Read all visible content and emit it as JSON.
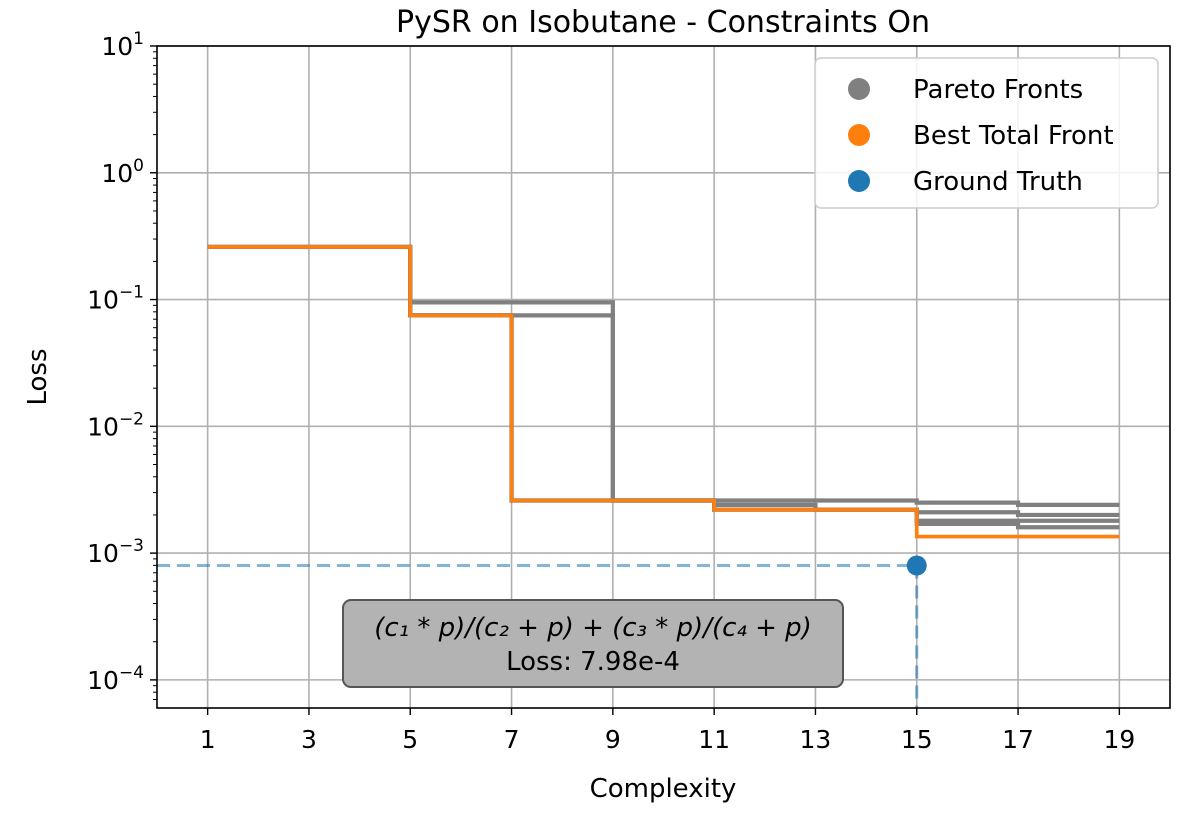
{
  "chart_data": {
    "type": "line",
    "title": "PySR on Isobutane - Constraints On",
    "xlabel": "Complexity",
    "ylabel": "Loss",
    "xlim": [
      0,
      20
    ],
    "ylim": [
      6e-05,
      10
    ],
    "yscale": "log",
    "grid": true,
    "legend_position": "top-right",
    "xticks": [
      1,
      3,
      5,
      7,
      9,
      11,
      13,
      15,
      17,
      19
    ],
    "yticks": [
      {
        "value": 10,
        "base": "10",
        "exp": "1"
      },
      {
        "value": 1,
        "base": "10",
        "exp": "0"
      },
      {
        "value": 0.1,
        "base": "10",
        "exp": "−1"
      },
      {
        "value": 0.01,
        "base": "10",
        "exp": "−2"
      },
      {
        "value": 0.001,
        "base": "10",
        "exp": "−3"
      },
      {
        "value": 0.0001,
        "base": "10",
        "exp": "−4"
      }
    ],
    "legend": [
      {
        "label": "Pareto Fronts",
        "color": "#808080"
      },
      {
        "label": "Best Total Front",
        "color": "#ff7f0e"
      },
      {
        "label": "Ground Truth",
        "color": "#1f77b4"
      }
    ],
    "series": [
      {
        "group": "pareto",
        "color": "#808080",
        "x": [
          1,
          5,
          9,
          11,
          15,
          17,
          19
        ],
        "y": [
          0.26,
          0.095,
          0.0026,
          0.0026,
          0.0025,
          0.0024,
          0.0024
        ]
      },
      {
        "group": "pareto",
        "color": "#808080",
        "x": [
          1,
          5,
          9,
          11,
          13,
          15,
          17,
          19
        ],
        "y": [
          0.26,
          0.075,
          0.0026,
          0.0024,
          0.0022,
          0.0021,
          0.002,
          0.002
        ]
      },
      {
        "group": "pareto",
        "color": "#808080",
        "x": [
          1,
          5,
          7,
          11,
          15,
          17,
          19
        ],
        "y": [
          0.26,
          0.075,
          0.0026,
          0.0022,
          0.0018,
          0.0018,
          0.0018
        ]
      },
      {
        "group": "pareto",
        "color": "#808080",
        "x": [
          1,
          5,
          7,
          11,
          15,
          17,
          19
        ],
        "y": [
          0.26,
          0.075,
          0.0026,
          0.0022,
          0.0017,
          0.0016,
          0.0016
        ]
      },
      {
        "group": "best",
        "color": "#ff7f0e",
        "x": [
          1,
          5,
          7,
          11,
          15,
          19
        ],
        "y": [
          0.26,
          0.075,
          0.0026,
          0.0022,
          0.00135,
          0.00135
        ]
      }
    ],
    "ground_truth": {
      "x": 15,
      "y": 0.000798,
      "color": "#1f77b4"
    },
    "annotation": {
      "formula": "(c₁ * p)/(c₂ + p) + (c₃ * p)/(c₄ + p)",
      "loss_text": "Loss: 7.98e-4"
    }
  }
}
